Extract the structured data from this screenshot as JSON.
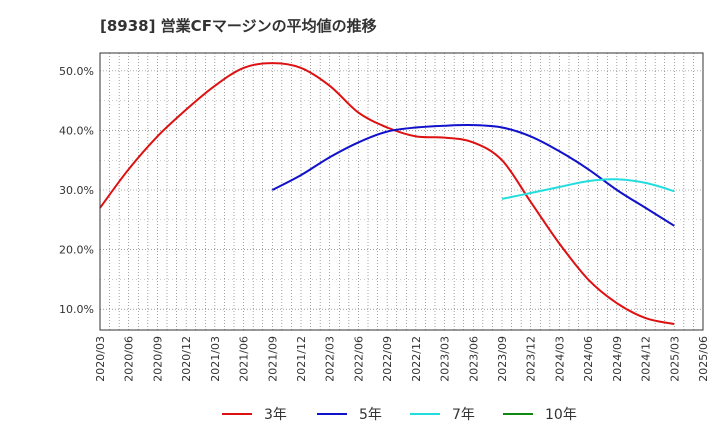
{
  "chart_data": {
    "type": "line",
    "title": "[8938]  営業CFマージンの平均値の推移",
    "xlabel": "",
    "ylabel": "",
    "x_ticks": [
      "2020/03",
      "2020/06",
      "2020/09",
      "2020/12",
      "2021/03",
      "2021/06",
      "2021/09",
      "2021/12",
      "2022/03",
      "2022/06",
      "2022/09",
      "2022/12",
      "2023/03",
      "2023/06",
      "2023/09",
      "2023/12",
      "2024/03",
      "2024/06",
      "2024/09",
      "2024/12",
      "2025/03",
      "2025/06"
    ],
    "y_ticks": [
      "10.0%",
      "20.0%",
      "30.0%",
      "40.0%",
      "50.0%"
    ],
    "y_tick_values": [
      10,
      20,
      30,
      40,
      50
    ],
    "ylim": [
      6.5,
      53
    ],
    "grid": true,
    "legend_position": "bottom",
    "series": [
      {
        "name": "3年",
        "color": "#dd1111",
        "x": [
          "2020/03",
          "2020/06",
          "2020/09",
          "2020/12",
          "2021/03",
          "2021/06",
          "2021/09",
          "2021/12",
          "2022/03",
          "2022/06",
          "2022/09",
          "2022/12",
          "2023/03",
          "2023/06",
          "2023/09",
          "2023/12",
          "2024/03",
          "2024/06",
          "2024/09",
          "2024/12",
          "2025/03"
        ],
        "values": [
          27.0,
          33.5,
          39.0,
          43.5,
          47.5,
          50.5,
          51.3,
          50.5,
          47.5,
          43.0,
          40.5,
          39.0,
          38.8,
          38.0,
          35.0,
          28.0,
          21.0,
          15.0,
          11.0,
          8.5,
          7.5
        ]
      },
      {
        "name": "5年",
        "color": "#1111cc",
        "x": [
          "2021/09",
          "2021/12",
          "2022/03",
          "2022/06",
          "2022/09",
          "2022/12",
          "2023/03",
          "2023/06",
          "2023/09",
          "2023/12",
          "2024/03",
          "2024/06",
          "2024/09",
          "2024/12",
          "2025/03"
        ],
        "values": [
          30.0,
          32.5,
          35.5,
          38.0,
          39.8,
          40.5,
          40.8,
          40.9,
          40.5,
          39.0,
          36.5,
          33.5,
          30.0,
          27.0,
          24.0
        ]
      },
      {
        "name": "7年",
        "color": "#22dddd",
        "x": [
          "2023/09",
          "2023/12",
          "2024/03",
          "2024/06",
          "2024/09",
          "2024/12",
          "2025/03"
        ],
        "values": [
          28.5,
          29.5,
          30.5,
          31.5,
          31.8,
          31.2,
          29.8
        ]
      },
      {
        "name": "10年",
        "color": "#118811",
        "x": [],
        "values": []
      }
    ]
  }
}
